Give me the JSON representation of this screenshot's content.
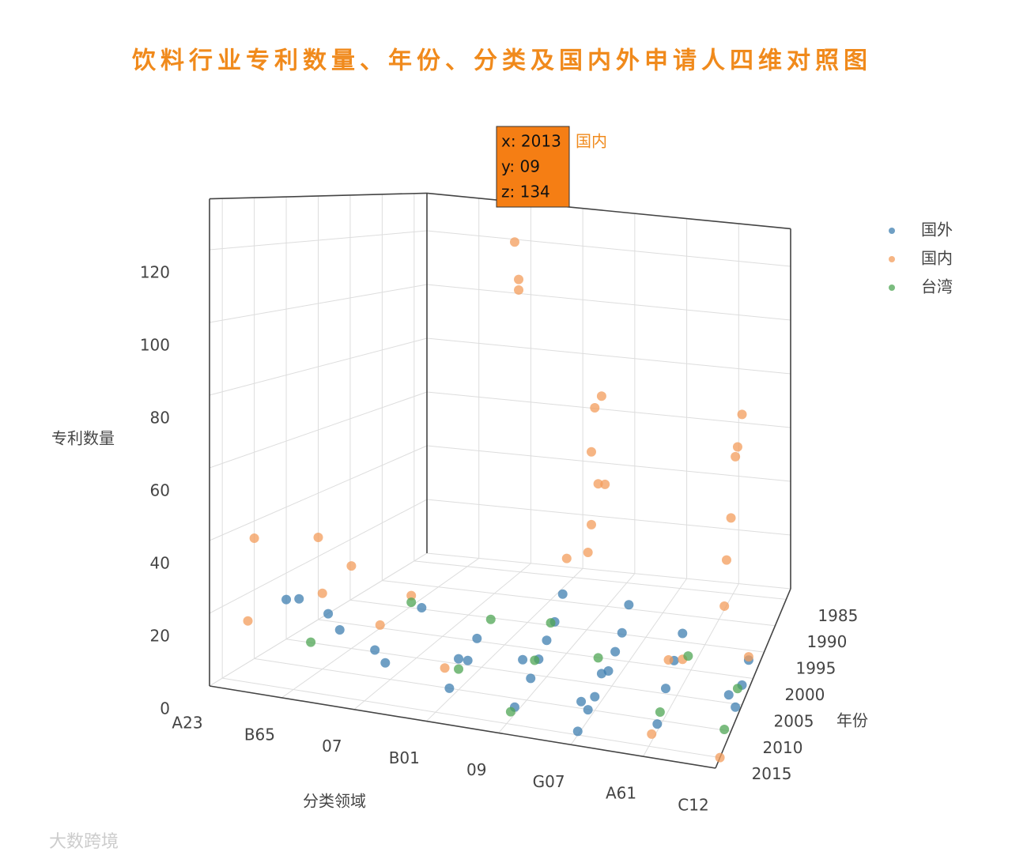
{
  "chart_data": {
    "type": "scatter3d",
    "title": "饮料行业专利数量、年份、分类及国内外申请人四维对照图",
    "x_label": "年份",
    "y_label": "分类领域",
    "z_label": "专利数量",
    "xlim": [
      1983,
      2017
    ],
    "xticks": [
      1985,
      1990,
      1995,
      2000,
      2005,
      2010,
      2015
    ],
    "categories": [
      "A23",
      "B65",
      "07",
      "B01",
      "09",
      "G07",
      "A61",
      "C12"
    ],
    "zlim": [
      0,
      134
    ],
    "zticks": [
      0,
      20,
      40,
      60,
      80,
      100,
      120
    ],
    "grid": true,
    "legend": "top-right",
    "series": [
      {
        "name": "国外",
        "color": "#3f7fb0",
        "x": [
          2003,
          2005,
          2007,
          2009,
          2011,
          2013,
          2004,
          2006,
          2008,
          2010,
          2012,
          2001,
          2003,
          2005,
          2007,
          2009,
          2011,
          2013,
          2000,
          2002,
          2004,
          2006,
          2008,
          2010,
          2012,
          2014,
          2015,
          2003,
          2006,
          2009,
          2012,
          2002,
          2005,
          2008,
          2011
        ],
        "y": [
          "A23",
          "A23",
          "B65",
          "B65",
          "07",
          "07",
          "07",
          "B01",
          "B01",
          "B01",
          "B01",
          "09",
          "09",
          "09",
          "09",
          "09",
          "09",
          "09",
          "G07",
          "G07",
          "G07",
          "G07",
          "G07",
          "G07",
          "G07",
          "G07",
          "G07",
          "A61",
          "A61",
          "A61",
          "A61",
          "C12",
          "C12",
          "C12",
          "C12"
        ],
        "z": [
          10,
          12,
          8,
          15,
          6,
          12,
          14,
          10,
          6,
          9,
          3,
          20,
          14,
          11,
          8,
          5,
          13,
          2,
          18,
          12,
          9,
          6,
          8,
          4,
          3,
          8,
          1,
          16,
          12,
          8,
          2,
          9,
          6,
          4,
          12
        ]
      },
      {
        "name": "国内",
        "color": "#f39c5b",
        "x": [
          2013,
          2012,
          2012,
          2010,
          2008,
          2011,
          2009,
          2007,
          2011,
          2012,
          2005,
          2007,
          2008,
          2010,
          2012,
          2013,
          2010,
          2010,
          2005,
          2012,
          2013,
          2008,
          2002,
          2015,
          2000,
          2011,
          2003,
          2014,
          2006,
          2000
        ],
        "y": [
          "09",
          "09",
          "09",
          "G07",
          "G07",
          "G07",
          "G07",
          "G07",
          "G07",
          "G07",
          "C12",
          "C12",
          "C12",
          "C12",
          "C12",
          "C12",
          "A23",
          "B65",
          "B65",
          "07",
          "B01",
          "A61",
          "C12",
          "C12",
          "A23",
          "A23",
          "A61",
          "A61",
          "07",
          "09"
        ],
        "z": [
          134,
          123,
          120,
          88,
          90,
          76,
          65,
          63,
          55,
          48,
          88,
          80,
          78,
          62,
          52,
          40,
          35,
          22,
          25,
          18,
          10,
          15,
          10,
          0,
          26,
          12,
          8,
          2,
          20,
          30
        ]
      },
      {
        "name": "台湾",
        "color": "#4fa654",
        "x": [
          2012,
          2006,
          2003,
          2010,
          2008,
          2004,
          2014,
          2009,
          2001,
          2011,
          2007,
          2013
        ],
        "y": [
          "B65",
          "07",
          "B01",
          "B01",
          "09",
          "09",
          "09",
          "G07",
          "A61",
          "A61",
          "C12",
          "C12"
        ],
        "z": [
          10,
          18,
          12,
          6,
          9,
          15,
          2,
          14,
          6,
          4,
          8,
          5
        ]
      }
    ],
    "hover": {
      "lines": [
        "x: 2013",
        "y: 09",
        "z: 134"
      ],
      "series": "国内"
    },
    "watermark": "大数跨境"
  }
}
